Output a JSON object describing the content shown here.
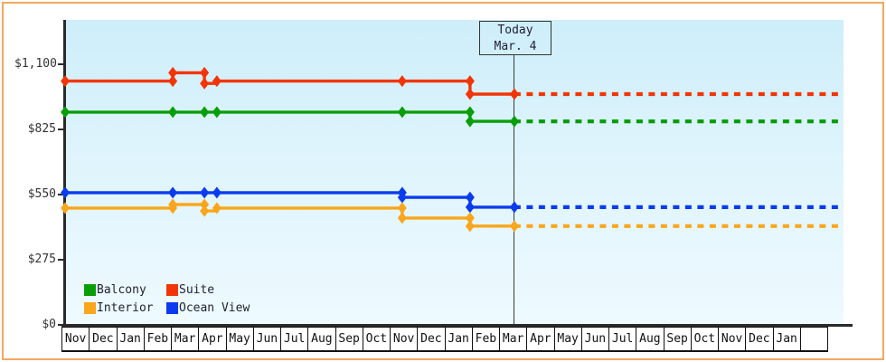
{
  "window": {
    "border_color": "#f0a95e",
    "plot_bg_top": "#cdeefa",
    "plot_bg_bottom": "#eefaff"
  },
  "today": {
    "line1": "Today",
    "line2": "Mar. 4"
  },
  "legend": {
    "position": "bottom-left-inside",
    "items": [
      {
        "label": "Balcony",
        "color": "#089e08"
      },
      {
        "label": "Suite",
        "color": "#f23506"
      },
      {
        "label": "Interior",
        "color": "#f9a61c"
      },
      {
        "label": "Ocean View",
        "color": "#0a3bee"
      }
    ]
  },
  "chart_data": {
    "type": "line",
    "title": "",
    "xlabel": "",
    "ylabel": "",
    "grid": false,
    "ylim": [
      0,
      1290
    ],
    "yticks": [
      {
        "label": "$1,100",
        "value": 1100
      },
      {
        "label": "$825",
        "value": 825
      },
      {
        "label": "$550",
        "value": 550
      },
      {
        "label": "$275",
        "value": 275
      },
      {
        "label": "$0",
        "value": 0
      }
    ],
    "months": [
      "Nov",
      "Dec",
      "Jan",
      "Feb",
      "Mar",
      "Apr",
      "May",
      "Jun",
      "Jul",
      "Aug",
      "Sep",
      "Oct",
      "Nov",
      "Dec",
      "Jan",
      "Feb",
      "Mar",
      "Apr",
      "May",
      "Jun",
      "Jul",
      "Aug",
      "Sep",
      "Oct",
      "Nov",
      "Dec",
      "Jan",
      ""
    ],
    "today_month_index": 16.03,
    "forecast_end_index": 27.68,
    "series": [
      {
        "name": "Suite",
        "color": "#f23506",
        "points": [
          [
            0.13,
            1029
          ],
          [
            3.94,
            1029
          ],
          [
            3.94,
            1064
          ],
          [
            5.06,
            1064
          ],
          [
            5.06,
            1019
          ],
          [
            5.5,
            1019
          ],
          [
            5.5,
            1029
          ],
          [
            12.06,
            1029
          ],
          [
            14.46,
            1029
          ],
          [
            14.46,
            974
          ],
          [
            16.03,
            974
          ]
        ],
        "markers": [
          [
            0.13,
            1029
          ],
          [
            3.94,
            1029
          ],
          [
            3.94,
            1064
          ],
          [
            5.06,
            1064
          ],
          [
            5.06,
            1019
          ],
          [
            5.5,
            1029
          ],
          [
            12.06,
            1029
          ],
          [
            14.46,
            1029
          ],
          [
            14.46,
            974
          ],
          [
            16.03,
            974
          ]
        ],
        "forecast_value": 974
      },
      {
        "name": "Balcony",
        "color": "#089e08",
        "points": [
          [
            0.13,
            898
          ],
          [
            14.46,
            898
          ],
          [
            14.46,
            859
          ],
          [
            16.03,
            859
          ]
        ],
        "markers": [
          [
            0.13,
            898
          ],
          [
            3.94,
            898
          ],
          [
            5.06,
            898
          ],
          [
            5.5,
            898
          ],
          [
            12.06,
            898
          ],
          [
            14.46,
            898
          ],
          [
            14.46,
            859
          ],
          [
            16.03,
            859
          ]
        ],
        "forecast_value": 859
      },
      {
        "name": "Ocean View",
        "color": "#0a3bee",
        "points": [
          [
            0.13,
            558
          ],
          [
            12.06,
            558
          ],
          [
            12.06,
            538
          ],
          [
            14.46,
            538
          ],
          [
            14.46,
            497
          ],
          [
            16.03,
            497
          ]
        ],
        "markers": [
          [
            0.13,
            558
          ],
          [
            3.94,
            558
          ],
          [
            5.06,
            558
          ],
          [
            5.5,
            558
          ],
          [
            12.06,
            558
          ],
          [
            12.06,
            538
          ],
          [
            14.46,
            538
          ],
          [
            14.46,
            497
          ],
          [
            16.03,
            497
          ]
        ],
        "forecast_value": 497
      },
      {
        "name": "Interior",
        "color": "#f9a61c",
        "points": [
          [
            0.13,
            493
          ],
          [
            3.94,
            493
          ],
          [
            3.94,
            508
          ],
          [
            5.06,
            508
          ],
          [
            5.06,
            481
          ],
          [
            5.5,
            481
          ],
          [
            5.5,
            493
          ],
          [
            12.06,
            493
          ],
          [
            12.06,
            451
          ],
          [
            14.46,
            451
          ],
          [
            14.46,
            417
          ],
          [
            16.03,
            417
          ]
        ],
        "markers": [
          [
            0.13,
            493
          ],
          [
            3.94,
            493
          ],
          [
            3.94,
            508
          ],
          [
            5.06,
            508
          ],
          [
            5.06,
            481
          ],
          [
            5.5,
            493
          ],
          [
            12.06,
            493
          ],
          [
            12.06,
            451
          ],
          [
            14.46,
            451
          ],
          [
            14.46,
            417
          ],
          [
            16.03,
            417
          ]
        ],
        "forecast_value": 417
      }
    ]
  }
}
